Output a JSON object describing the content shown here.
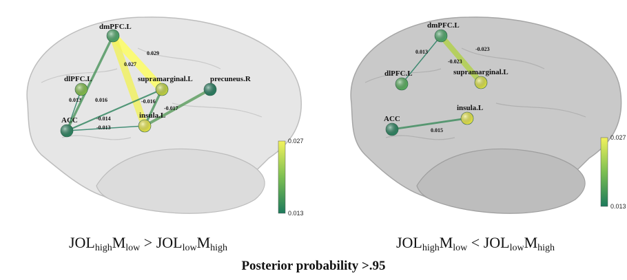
{
  "panels": [
    {
      "nodes": [
        {
          "label": "dmPFC.L"
        },
        {
          "label": "dlPFC.L"
        },
        {
          "label": "supramarginal.L"
        },
        {
          "label": "precuneus.R"
        },
        {
          "label": "ACC"
        },
        {
          "label": "insula.L"
        }
      ],
      "edges": [
        {
          "label": 0.029
        },
        {
          "label": 0.027
        },
        {
          "label": 0.013
        },
        {
          "label": 0.016
        },
        {
          "label": -0.014
        },
        {
          "label": -0.013
        },
        {
          "label": -0.016
        },
        {
          "label": -0.017
        }
      ],
      "colorbar": {
        "max": 0.027,
        "min": 0.013
      },
      "caption": {
        "terms": [
          [
            [
              "JOL",
              "high"
            ],
            [
              "M",
              "low"
            ]
          ],
          [
            [
              "JOL",
              "low"
            ],
            [
              "M",
              "high"
            ]
          ]
        ],
        "operator": ">"
      }
    },
    {
      "nodes": [
        {
          "label": "dmPFC.L"
        },
        {
          "label": "dlPFC.L"
        },
        {
          "label": "supramarginal.L"
        },
        {
          "label": "ACC"
        },
        {
          "label": "insula.L"
        }
      ],
      "edges": [
        {
          "label": 0.013
        },
        {
          "label": -0.023
        },
        {
          "label": -0.023
        },
        {
          "label": 0.015
        }
      ],
      "colorbar": {
        "max": 0.027,
        "min": 0.013
      },
      "caption": {
        "terms": [
          [
            [
              "JOL",
              "high"
            ],
            [
              "M",
              "low"
            ]
          ],
          [
            [
              "JOL",
              "low"
            ],
            [
              "M",
              "high"
            ]
          ]
        ],
        "operator": "<"
      }
    }
  ],
  "footer": "Posterior probability >.95"
}
